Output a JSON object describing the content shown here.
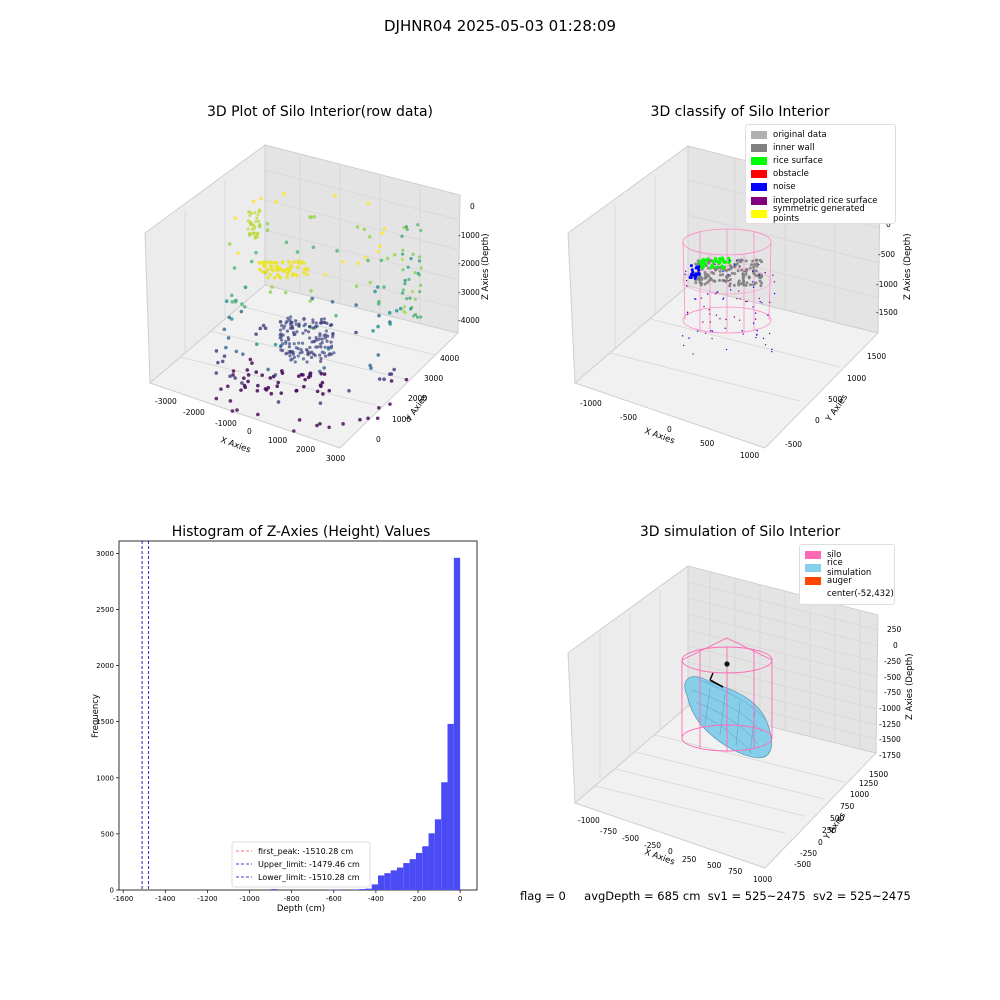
{
  "suptitle": "DJHNR04 2025-05-03 01:28:09",
  "panels": {
    "raw": {
      "title": "3D Plot of Silo Interior(row data)",
      "xlabel": "X Axies",
      "ylabel": "Y Axies",
      "zlabel": "Z Axies (Depth)",
      "xticks": [
        "-3000",
        "-2000",
        "-1000",
        "0",
        "1000",
        "2000",
        "3000"
      ],
      "yticks": [
        "0",
        "1000",
        "2000",
        "3000",
        "4000"
      ],
      "zticks": [
        "0",
        "-1000",
        "-2000",
        "-3000",
        "-4000"
      ]
    },
    "classify": {
      "title": "3D classify of Silo Interior",
      "xlabel": "X Axies",
      "ylabel": "Y Axies",
      "zlabel": "Z Axies (Depth)",
      "xticks": [
        "-1000",
        "-500",
        "0",
        "500",
        "1000"
      ],
      "yticks": [
        "-500",
        "0",
        "500",
        "1000",
        "1500"
      ],
      "zticks": [
        "0",
        "-500",
        "-1000",
        "-1500"
      ],
      "legend": [
        {
          "label": "original data",
          "color": "#b0b0b0"
        },
        {
          "label": "inner wall",
          "color": "#808080"
        },
        {
          "label": "rice surface",
          "color": "#00ff00"
        },
        {
          "label": "obstacle",
          "color": "#ff0000"
        },
        {
          "label": "noise",
          "color": "#0000ff"
        },
        {
          "label": "interpolated rice surface",
          "color": "#800080"
        },
        {
          "label": "symmetric generated points",
          "color": "#ffff00"
        }
      ]
    },
    "simulation": {
      "title": "3D simulation of Silo Interior",
      "xlabel": "X Axies",
      "ylabel": "Y Axies",
      "zlabel": "Z Axies (Depth)",
      "xticks": [
        "-1000",
        "-750",
        "-500",
        "-250",
        "0",
        "250",
        "500",
        "750",
        "1000"
      ],
      "yticks": [
        "-500",
        "-250",
        "0",
        "250",
        "500",
        "750",
        "1000",
        "1250",
        "1500"
      ],
      "zticks": [
        "250",
        "0",
        "-250",
        "-500",
        "-750",
        "-1000",
        "-1250",
        "-1500",
        "-1750"
      ],
      "legend": [
        {
          "label": "silo",
          "color": "#ff69b4"
        },
        {
          "label": "rice simulation",
          "color": "#87ceeb"
        },
        {
          "label": "auger",
          "color": "#ff4500"
        },
        {
          "label": "center(-52,432)",
          "color": ""
        }
      ]
    }
  },
  "chart_data": {
    "type": "bar",
    "title": "Histogram of Z-Axies (Height) Values",
    "xlabel": "Depth (cm)",
    "ylabel": "Frequency",
    "xlim": [
      -1620,
      80
    ],
    "ylim": [
      0,
      3110
    ],
    "xticks": [
      -1600,
      -1400,
      -1200,
      -1000,
      -800,
      -600,
      -400,
      -200,
      0
    ],
    "yticks": [
      0,
      500,
      1000,
      1500,
      2000,
      2500,
      3000
    ],
    "bin_width": 30,
    "bin_starts": [
      -900,
      -630,
      -600,
      -510,
      -480,
      -450,
      -420,
      -390,
      -360,
      -330,
      -300,
      -270,
      -240,
      -210,
      -180,
      -150,
      -120,
      -90,
      -60,
      -30
    ],
    "values": [
      8,
      3,
      4,
      5,
      8,
      12,
      50,
      130,
      150,
      175,
      200,
      240,
      275,
      330,
      390,
      505,
      630,
      960,
      1480,
      2960
    ],
    "bar_color": "#4b4bf5",
    "vlines": [
      {
        "label": "first_peak: -1510.28 cm",
        "x": -1510.28,
        "color": "#ff4040"
      },
      {
        "label": "Upper_limit: -1479.46 cm",
        "x": -1479.46,
        "color": "#0000cc"
      },
      {
        "label": "Lower_limit: -1510.28 cm",
        "x": -1510.28,
        "color": "#0000cc"
      }
    ],
    "legend_position": "lower-center"
  },
  "footer": {
    "flag": "flag = 0",
    "avg": "avgDepth = 685 cm",
    "sv1": "sv1 = 525~2475",
    "sv2": "sv2 = 525~2475"
  }
}
